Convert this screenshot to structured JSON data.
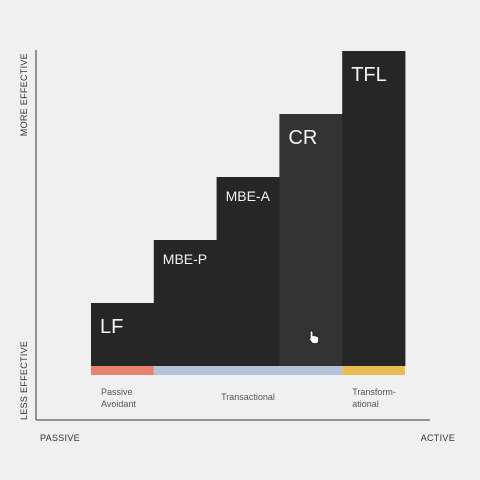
{
  "chart_data": {
    "type": "bar",
    "categories": [
      "LF",
      "MBE-P",
      "MBE-A",
      "CR",
      "TFL"
    ],
    "values": [
      1,
      2,
      3,
      4,
      5
    ],
    "ylim": [
      0,
      5
    ],
    "y_axis_top_label": "MORE EFFECTIVE",
    "y_axis_bottom_label": "LESS EFFECTIVE",
    "x_axis_left_label": "PASSIVE",
    "x_axis_right_label": "ACTIVE",
    "groups": [
      {
        "lines": [
          "Passive",
          "Avoidant"
        ],
        "start": 0,
        "end": 0,
        "color": "#e8826f"
      },
      {
        "lines": [
          "Transactional"
        ],
        "start": 1,
        "end": 3,
        "color": "#b3c3d8"
      },
      {
        "lines": [
          "Transform-",
          "ational"
        ],
        "start": 4,
        "end": 4,
        "color": "#e8bb55"
      }
    ],
    "highlighted_category": "CR",
    "colors": {
      "bar": "#262626",
      "bar_highlight": "#333333",
      "axis": "#333333",
      "background": "#f0f0f0"
    },
    "grid": false,
    "legend": "none"
  },
  "cursor": {
    "icon": "hand-pointer-icon"
  }
}
